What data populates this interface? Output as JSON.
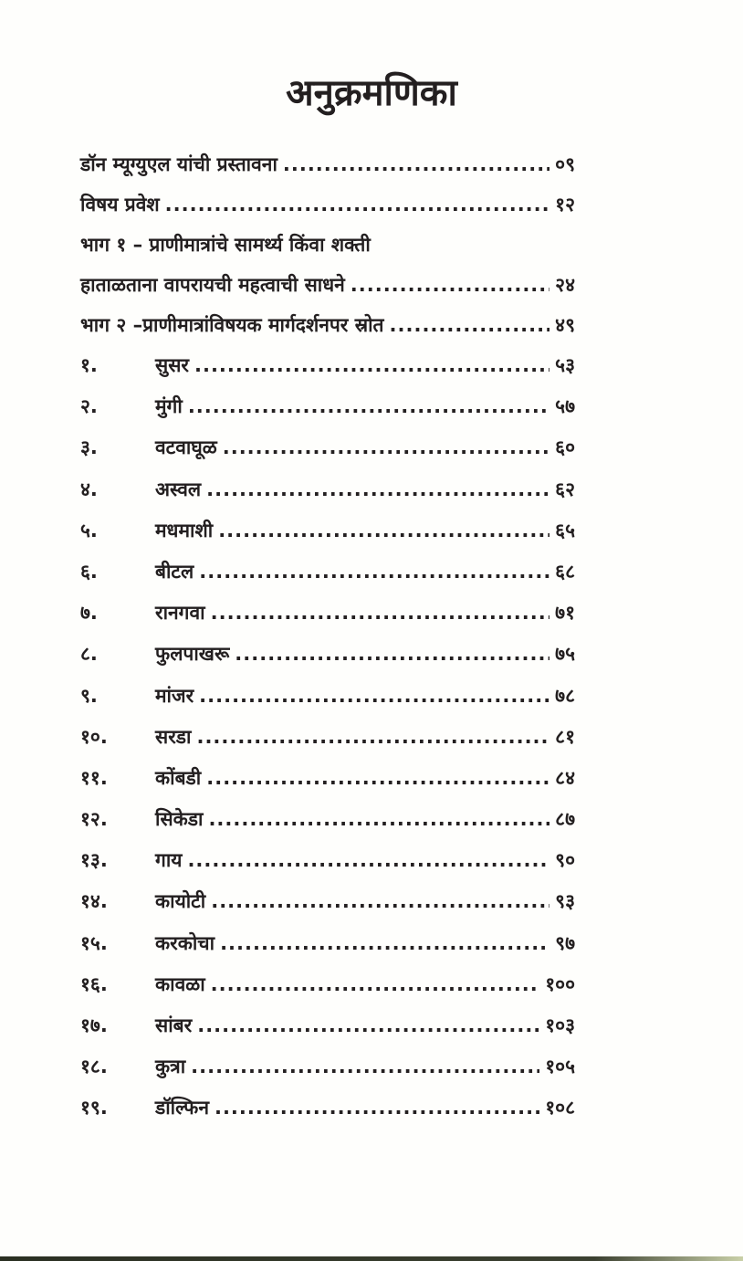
{
  "title": "अनुक्रमणिका",
  "front_entries": [
    {
      "label": "डॉन म्यूग्युएल यांची प्रस्तावना",
      "page": "०९"
    },
    {
      "label": "विषय प्रवेश",
      "page": "१२"
    },
    {
      "label": "भाग १ – प्राणीमात्रांचे सामर्थ्य किंवा शक्ती",
      "page": ""
    },
    {
      "label": "हाताळताना वापरायची महत्वाची साधने",
      "page": "२४"
    },
    {
      "label": "भाग २ –प्राणीमात्रांविषयक मार्गदर्शनपर स्रोत",
      "page": "४९"
    }
  ],
  "chapters": [
    {
      "num": "१.",
      "label": "सुसर",
      "page": "५३"
    },
    {
      "num": "२.",
      "label": "मुंगी",
      "page": "५७"
    },
    {
      "num": "३.",
      "label": "वटवाघूळ",
      "page": "६०"
    },
    {
      "num": "४.",
      "label": "अस्वल",
      "page": "६२"
    },
    {
      "num": "५.",
      "label": "मधमाशी",
      "page": "६५"
    },
    {
      "num": "६.",
      "label": "बीटल",
      "page": "६८"
    },
    {
      "num": "७.",
      "label": "रानगवा",
      "page": "७१"
    },
    {
      "num": "८.",
      "label": "फुलपाखरू",
      "page": "७५"
    },
    {
      "num": "९.",
      "label": "मांजर",
      "page": "७८"
    },
    {
      "num": "१०.",
      "label": "सरडा",
      "page": "८१"
    },
    {
      "num": "११.",
      "label": "कोंबडी",
      "page": "८४"
    },
    {
      "num": "१२.",
      "label": "सिकेडा",
      "page": "८७"
    },
    {
      "num": "१३.",
      "label": "गाय",
      "page": "९०"
    },
    {
      "num": "१४.",
      "label": "कायोटी",
      "page": "९३"
    },
    {
      "num": "१५.",
      "label": "करकोचा",
      "page": "९७"
    },
    {
      "num": "१६.",
      "label": "कावळा",
      "page": "१००"
    },
    {
      "num": "१७.",
      "label": "सांबर",
      "page": "१०३"
    },
    {
      "num": "१८.",
      "label": "कुत्रा",
      "page": "१०५"
    },
    {
      "num": "१९.",
      "label": "डॉल्फिन",
      "page": "१०८"
    }
  ]
}
